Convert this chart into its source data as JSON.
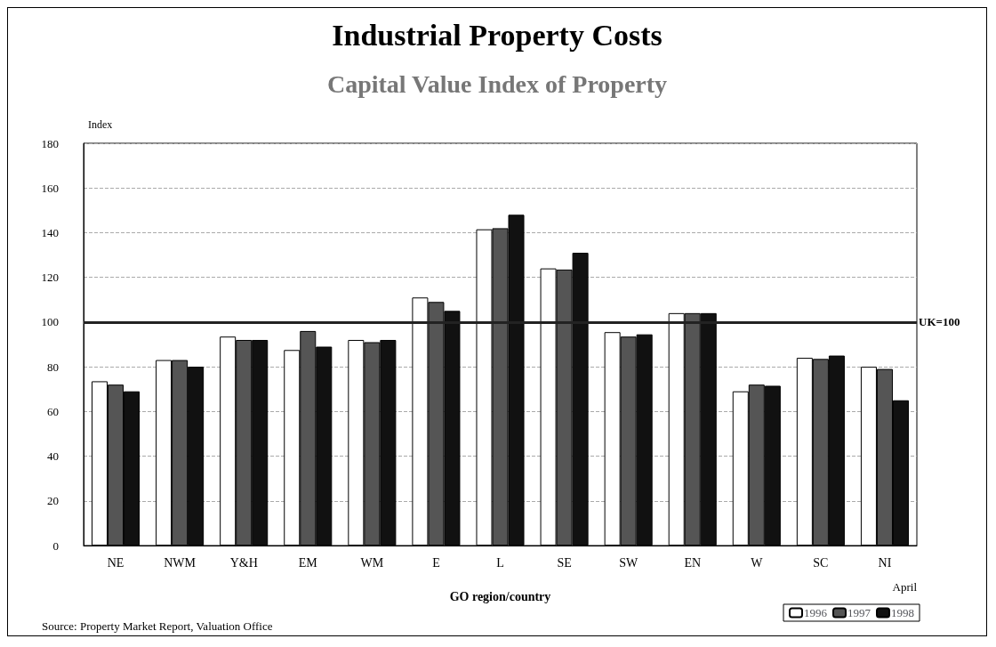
{
  "chart_data": {
    "type": "bar",
    "title": "Industrial Property Costs",
    "subtitle": "Capital Value Index of Property",
    "ylabel": "Index",
    "xlabel": "GO region/country",
    "categories": [
      "NE",
      "NWM",
      "Y&H",
      "EM",
      "WM",
      "E",
      "L",
      "SE",
      "SW",
      "EN",
      "W",
      "SC",
      "NI"
    ],
    "series": [
      {
        "name": "1996",
        "color": "#ffffff",
        "values": [
          73.5,
          83,
          93.5,
          87.5,
          92,
          111,
          141.5,
          124,
          95.5,
          104,
          69,
          84,
          80
        ]
      },
      {
        "name": "1997",
        "color": "#555555",
        "values": [
          72,
          83,
          92,
          96,
          91,
          109,
          142,
          123.5,
          93.5,
          104,
          72,
          83.5,
          79
        ]
      },
      {
        "name": "1998",
        "color": "#111111",
        "values": [
          69,
          80,
          92,
          89,
          92,
          105,
          148,
          131,
          94.5,
          104,
          71.5,
          85,
          65
        ]
      }
    ],
    "ylim": [
      0,
      180
    ],
    "yticks": [
      0,
      20,
      40,
      60,
      80,
      100,
      120,
      140,
      160,
      180
    ],
    "grid": "y",
    "legend": "bottom right",
    "ref_lines": [
      {
        "axis": "y",
        "value": 100,
        "label": "UK=100"
      }
    ],
    "annotations": [
      "April",
      "Source: Property Market Report, Valuation Office"
    ]
  }
}
